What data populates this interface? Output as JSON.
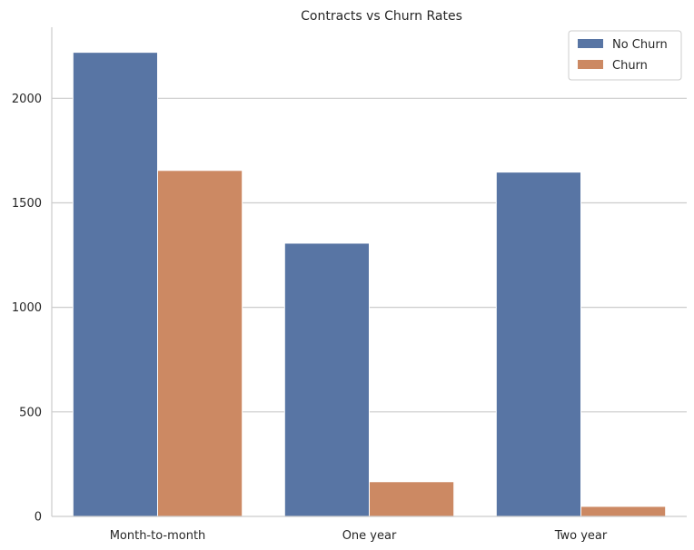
{
  "chart_data": {
    "type": "bar",
    "title": "Contracts vs Churn Rates",
    "xlabel": "",
    "ylabel": "",
    "categories": [
      "Month-to-month",
      "One year",
      "Two year"
    ],
    "series": [
      {
        "name": "No Churn",
        "color": "#5875a4",
        "values": [
          2220,
          1307,
          1647
        ]
      },
      {
        "name": "Churn",
        "color": "#cc8963",
        "values": [
          1655,
          166,
          48
        ]
      }
    ],
    "ylim": [
      0,
      2340
    ],
    "yticks": [
      0,
      500,
      1000,
      1500,
      2000
    ],
    "grid": "horizontal",
    "legend_position": "top-right"
  }
}
